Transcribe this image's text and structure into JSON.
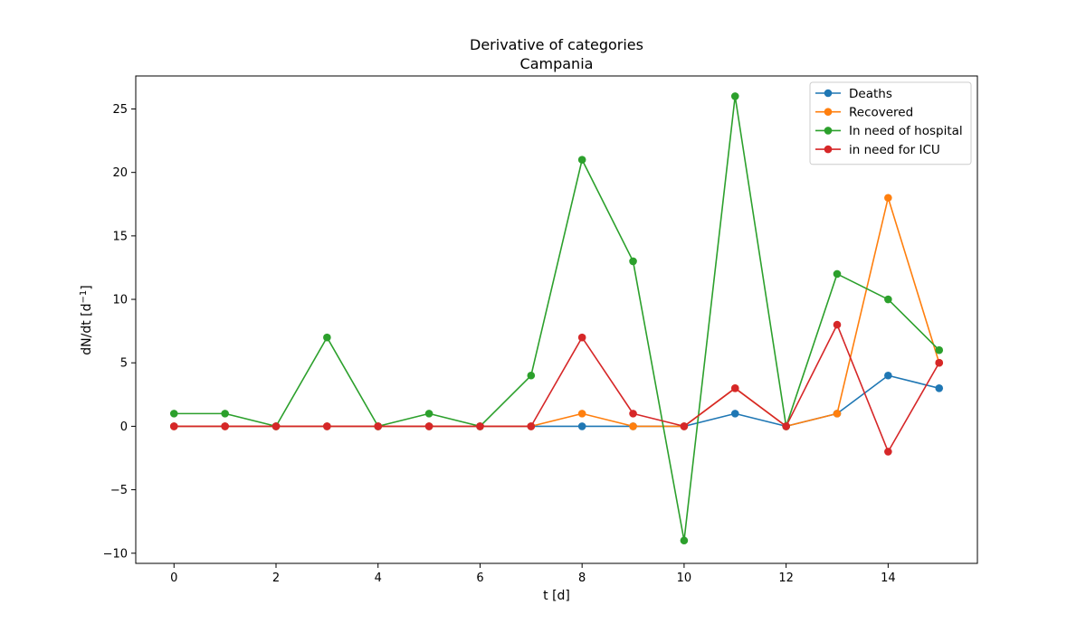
{
  "chart_data": {
    "type": "line",
    "title": "Derivative of categories",
    "subtitle": "Campania",
    "xlabel": "t [d]",
    "ylabel_main": "dN/dt [d",
    "ylabel_sup": "−1",
    "ylabel_close": "]",
    "xlim": [
      -0.75,
      15.75
    ],
    "ylim": [
      -10.8,
      27.6
    ],
    "xticks": [
      0,
      2,
      4,
      6,
      8,
      10,
      12,
      14
    ],
    "yticks": [
      -10,
      -5,
      0,
      5,
      10,
      15,
      20,
      25
    ],
    "grid": false,
    "legend_position": "top-right",
    "x": [
      0,
      1,
      2,
      3,
      4,
      5,
      6,
      7,
      8,
      9,
      10,
      11,
      12,
      13,
      14,
      15
    ],
    "series": [
      {
        "name": "Deaths",
        "color": "#1f77b4",
        "values": [
          0,
          0,
          0,
          0,
          0,
          0,
          0,
          0,
          0,
          0,
          0,
          1,
          0,
          1,
          4,
          3
        ]
      },
      {
        "name": "Recovered",
        "color": "#ff7f0e",
        "values": [
          0,
          0,
          0,
          0,
          0,
          0,
          0,
          0,
          1,
          0,
          0,
          3,
          0,
          1,
          18,
          5
        ]
      },
      {
        "name": "In need of hospital",
        "color": "#2ca02c",
        "values": [
          1,
          1,
          0,
          7,
          0,
          1,
          0,
          4,
          21,
          13,
          -9,
          26,
          0,
          12,
          10,
          6
        ]
      },
      {
        "name": "in need for ICU",
        "color": "#d62728",
        "values": [
          0,
          0,
          0,
          0,
          0,
          0,
          0,
          0,
          7,
          1,
          0,
          3,
          0,
          8,
          -2,
          5
        ]
      }
    ]
  }
}
